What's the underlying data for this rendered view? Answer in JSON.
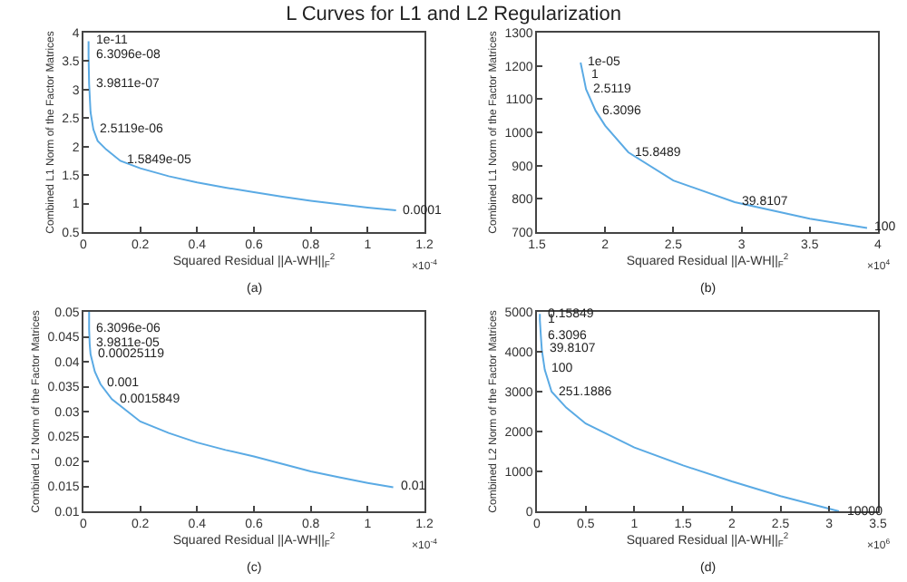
{
  "chart_data": [
    {
      "type": "line",
      "title": "L Curves for L1 and L2 Regularization",
      "xlabel": "Squared Residual ||A-WH||$_{F}$$^{2}$",
      "ylabel": "Combined L1 Norm of the Factor Matrices",
      "xlim": [
        0,
        1.2
      ],
      "ylim": [
        0.5,
        4
      ],
      "xticks": [
        0,
        0.2,
        0.4,
        0.6,
        0.8,
        1,
        1.2
      ],
      "yticks": [
        0.5,
        1,
        1.5,
        2,
        2.5,
        3,
        3.5,
        4
      ],
      "grid": false,
      "marker": "none",
      "line_style": "solid",
      "series": [
        {
          "color": "#5aaae4",
          "x": [
            0.018,
            0.018,
            0.02,
            0.025,
            0.035,
            0.05,
            0.08,
            0.13,
            0.2,
            0.3,
            0.4,
            0.5,
            0.6,
            0.7,
            0.8,
            0.9,
            1.0,
            1.1
          ],
          "values": [
            3.85,
            3.6,
            3.1,
            2.6,
            2.3,
            2.1,
            1.95,
            1.75,
            1.62,
            1.48,
            1.37,
            1.28,
            1.2,
            1.12,
            1.05,
            0.99,
            0.93,
            0.88
          ]
        }
      ],
      "annotations": [
        {
          "text": "1e-11",
          "x": 0.018,
          "y": 3.85
        },
        {
          "text": "6.3096e-08",
          "x": 0.018,
          "y": 3.6
        },
        {
          "text": "3.9811e-07",
          "x": 0.02,
          "y": 3.1
        },
        {
          "text": "2.5119e-06",
          "x": 0.035,
          "y": 2.3
        },
        {
          "text": "1.5849e-05",
          "x": 0.13,
          "y": 1.75
        },
        {
          "text": "0.0001",
          "x": 1.1,
          "y": 0.88
        },
        "×10$^{-4}$",
        "(a)"
      ]
    },
    {
      "type": "line",
      "xlabel": "Squared Residual ||A-WH||$_{F}$$^{2}$",
      "ylabel": "Combined L1 Norm of the Factor Matrices",
      "xlim": [
        1.5,
        4
      ],
      "ylim": [
        700,
        1300
      ],
      "xticks": [
        1.5,
        2,
        2.5,
        3,
        3.5,
        4
      ],
      "yticks": [
        700,
        800,
        900,
        1000,
        1100,
        1200,
        1300
      ],
      "grid": false,
      "marker": "none",
      "line_style": "solid",
      "series": [
        {
          "color": "#5aaae4",
          "x": [
            1.82,
            1.84,
            1.86,
            1.93,
            2.0,
            2.17,
            2.5,
            2.95,
            3.5,
            3.92
          ],
          "values": [
            1210,
            1170,
            1130,
            1065,
            1020,
            940,
            855,
            790,
            740,
            712
          ]
        }
      ],
      "annotations": [
        {
          "text": "1e-05",
          "x": 1.82,
          "y": 1210
        },
        {
          "text": "1",
          "x": 1.84,
          "y": 1170
        },
        {
          "text": "2.5119",
          "x": 1.86,
          "y": 1130
        },
        {
          "text": "6.3096",
          "x": 1.93,
          "y": 1065
        },
        {
          "text": "15.8489",
          "x": 2.17,
          "y": 940
        },
        {
          "text": "39.8107",
          "x": 2.95,
          "y": 790
        },
        {
          "text": "100",
          "x": 3.92,
          "y": 712
        },
        "×10$^{4}$",
        "(b)"
      ]
    },
    {
      "type": "line",
      "xlabel": "Squared Residual ||A-WH||$_{F}$$^{2}$",
      "ylabel": "Combined L2 Norm of the Factor Matrices",
      "xlim": [
        0,
        1.2
      ],
      "ylim": [
        0.01,
        0.05
      ],
      "xticks": [
        0,
        0.2,
        0.4,
        0.6,
        0.8,
        1,
        1.2
      ],
      "yticks": [
        0.01,
        0.015,
        0.02,
        0.025,
        0.03,
        0.035,
        0.04,
        0.045,
        0.05
      ],
      "grid": false,
      "marker": "none",
      "line_style": "solid",
      "series": [
        {
          "color": "#5aaae4",
          "x": [
            0.02,
            0.02,
            0.022,
            0.025,
            0.04,
            0.06,
            0.1,
            0.2,
            0.3,
            0.4,
            0.5,
            0.6,
            0.7,
            0.8,
            0.9,
            1.0,
            1.09
          ],
          "values": [
            0.05,
            0.0465,
            0.0435,
            0.0415,
            0.038,
            0.0355,
            0.0325,
            0.028,
            0.0257,
            0.0238,
            0.0223,
            0.021,
            0.0195,
            0.018,
            0.0168,
            0.0157,
            0.0148
          ]
        }
      ],
      "annotations": [
        {
          "text": "6.3096e-06",
          "x": 0.02,
          "y": 0.0465
        },
        {
          "text": "3.9811e-05",
          "x": 0.022,
          "y": 0.0435
        },
        {
          "text": "0.00025119",
          "x": 0.025,
          "y": 0.0415
        },
        {
          "text": "0.001",
          "x": 0.06,
          "y": 0.0355
        },
        {
          "text": "0.0015849",
          "x": 0.1,
          "y": 0.0325
        },
        {
          "text": "0.01",
          "x": 1.09,
          "y": 0.0148
        },
        "×10$^{-4}$",
        "(c)"
      ]
    },
    {
      "type": "line",
      "xlabel": "Squared Residual ||A-WH||$_{F}$$^{2}$",
      "ylabel": "Combined L2 Norm of the Factor Matrices",
      "xlim": [
        0,
        3.5
      ],
      "ylim": [
        0,
        5000
      ],
      "xticks": [
        0,
        0.5,
        1,
        1.5,
        2,
        2.5,
        3,
        3.5
      ],
      "yticks": [
        0,
        1000,
        2000,
        3000,
        4000,
        5000
      ],
      "grid": false,
      "marker": "none",
      "line_style": "solid",
      "series": [
        {
          "color": "#5aaae4",
          "x": [
            0.03,
            0.03,
            0.04,
            0.05,
            0.08,
            0.15,
            0.3,
            0.5,
            1.0,
            1.5,
            2.0,
            2.5,
            3.1
          ],
          "values": [
            4950,
            4800,
            4400,
            4050,
            3550,
            3000,
            2600,
            2200,
            1600,
            1150,
            750,
            380,
            0
          ]
        }
      ],
      "annotations": [
        {
          "text": "0.15849",
          "x": 0.03,
          "y": 4950
        },
        {
          "text": "1",
          "x": 0.03,
          "y": 4800
        },
        {
          "text": "6.3096",
          "x": 0.04,
          "y": 4400
        },
        {
          "text": "39.8107",
          "x": 0.05,
          "y": 4050
        },
        {
          "text": "100",
          "x": 0.08,
          "y": 3550
        },
        {
          "text": "251.1886",
          "x": 0.15,
          "y": 3000
        },
        {
          "text": "10000",
          "x": 3.1,
          "y": 0
        },
        "×10$^{6}$",
        "(d)"
      ]
    }
  ]
}
